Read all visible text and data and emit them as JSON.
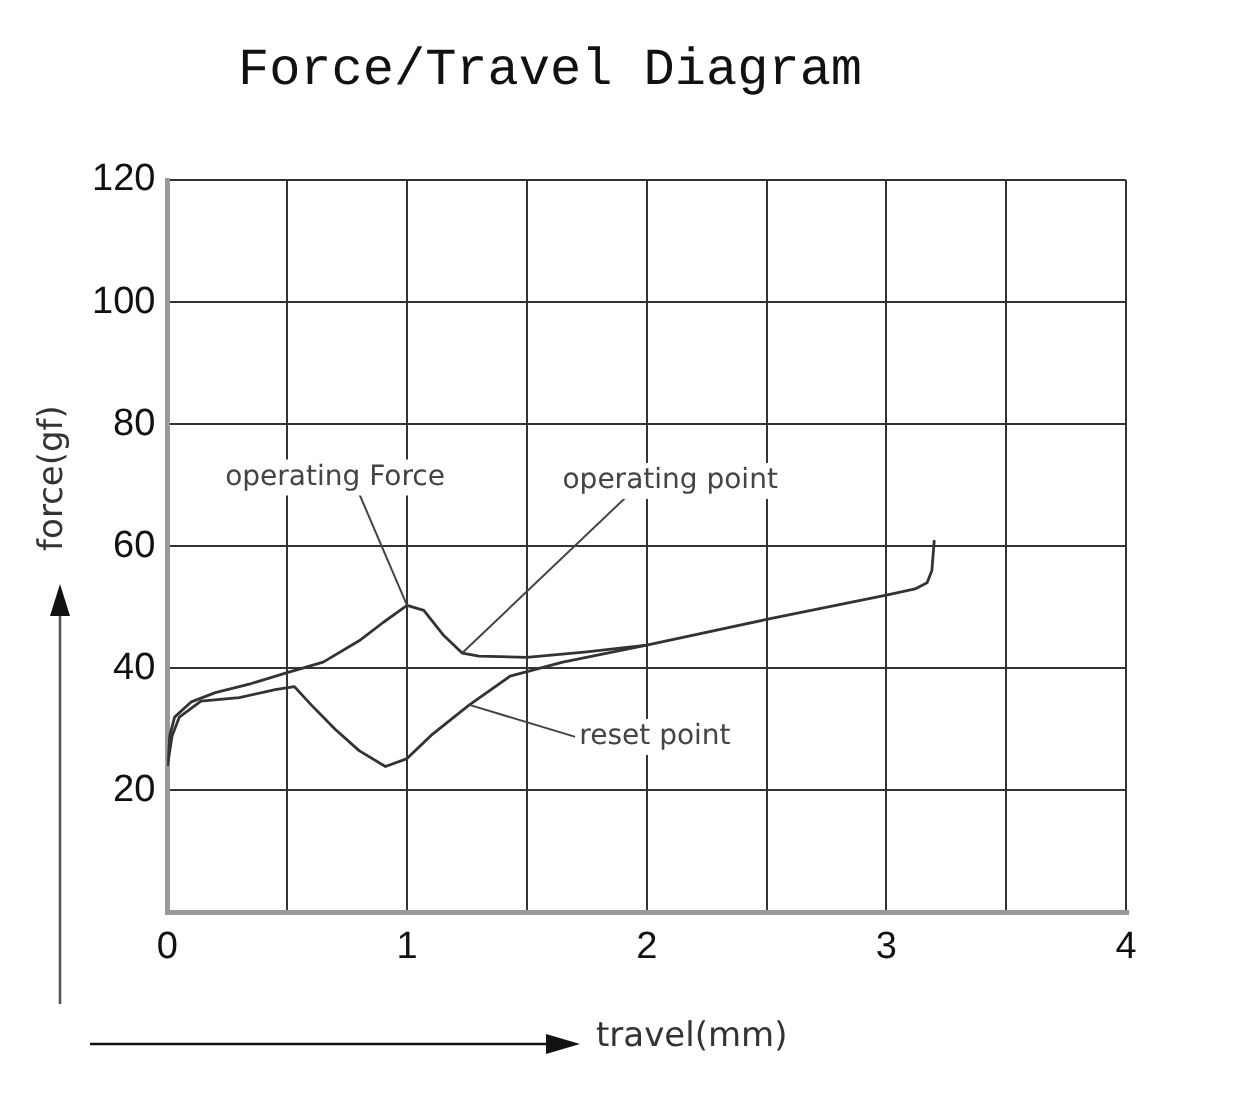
{
  "chart_data": {
    "type": "line",
    "title": "Force/Travel Diagram",
    "xlabel": "travel(mm)",
    "ylabel": "force(gf)",
    "xlim": [
      0,
      4
    ],
    "xticks": [
      0,
      {
        "value": 0.5,
        "label": null
      },
      1,
      {
        "value": 1.5,
        "label": null
      },
      2,
      {
        "value": 2.5,
        "label": null
      },
      3,
      {
        "value": 3.5,
        "label": null
      },
      4
    ],
    "ylim": [
      0,
      120
    ],
    "yticks": [
      {
        "value": 0,
        "label": null
      },
      20,
      40,
      60,
      80,
      100,
      120
    ],
    "grid": true,
    "series": [
      {
        "color": "#333333",
        "x": [
          0,
          0.01,
          0.03,
          0.1,
          0.2,
          0.35,
          0.5,
          0.65,
          0.8,
          0.9,
          1.0,
          1.07,
          1.15,
          1.23,
          1.3,
          1.5,
          1.75,
          2.0,
          2.5,
          3.0,
          3.12,
          3.17,
          3.19,
          3.2
        ],
        "values": [
          24,
          29,
          32,
          34.5,
          36,
          37.5,
          39.3,
          41,
          44.5,
          47.5,
          50.3,
          49.5,
          45.5,
          42.5,
          42,
          41.8,
          42.7,
          43.8,
          48,
          52,
          53,
          54,
          56,
          61
        ]
      },
      {
        "color": "#333333",
        "x": [
          0,
          0.02,
          0.05,
          0.14,
          0.3,
          0.45,
          0.53,
          0.6,
          0.7,
          0.8,
          0.91,
          1.0,
          1.1,
          1.26,
          1.43,
          1.65,
          2.0
        ],
        "values": [
          24,
          29,
          32,
          34.6,
          35.2,
          36.5,
          37,
          34,
          30,
          26.5,
          23.9,
          25.2,
          29,
          34,
          38.7,
          41,
          43.8
        ]
      }
    ],
    "annotations": [
      {
        "text": "operating Force",
        "x": 1.0,
        "y": 50.3
      },
      {
        "text": "operating point",
        "x": 1.23,
        "y": 42.5
      },
      {
        "text": "reset point",
        "x": 1.26,
        "y": 34
      }
    ]
  }
}
